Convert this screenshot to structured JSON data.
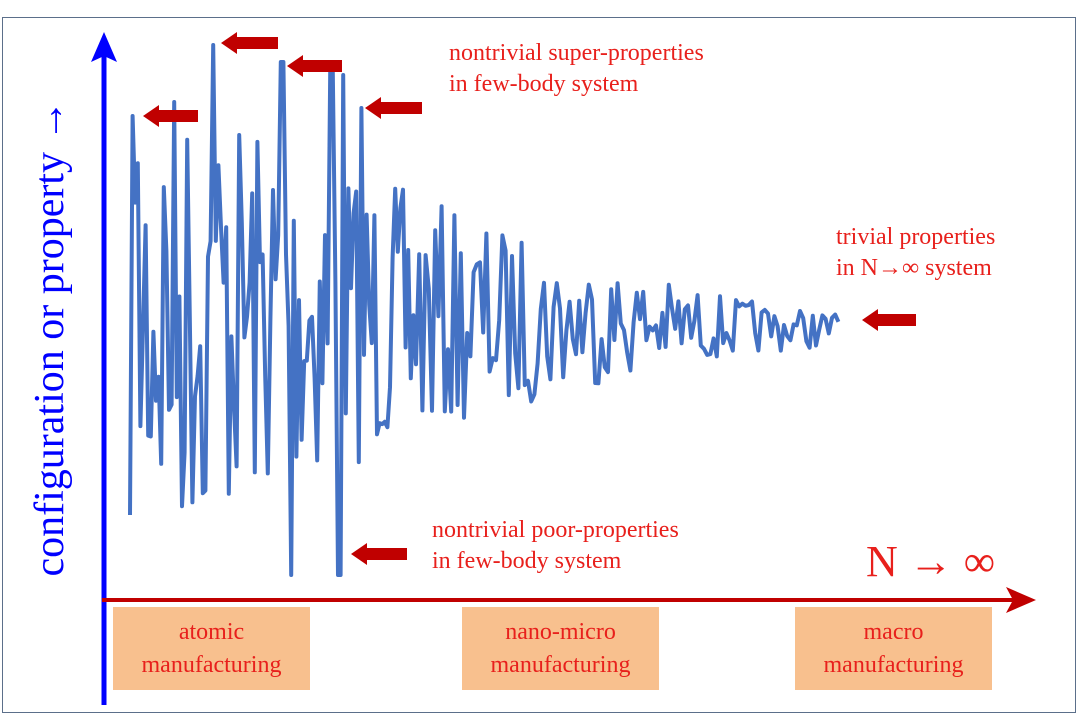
{
  "y_axis_label": "configuration or property →",
  "x_axis_label": "N → ∞",
  "annotations": {
    "super": [
      "nontrivial super-properties",
      "in few-body system"
    ],
    "poor": [
      "nontrivial poor-properties",
      "in few-body system"
    ],
    "trivial": [
      "trivial properties",
      "in N→∞ system"
    ]
  },
  "categories": [
    [
      "atomic",
      "manufacturing"
    ],
    [
      "nano-micro",
      "manufacturing"
    ],
    [
      "macro",
      "manufacturing"
    ]
  ],
  "colors": {
    "axis_y": "#0000ff",
    "axis_x": "#c00000",
    "signal": "#4472c4",
    "arrow": "#c00000",
    "text": "#e8201c",
    "box": "#f8c08e"
  }
}
